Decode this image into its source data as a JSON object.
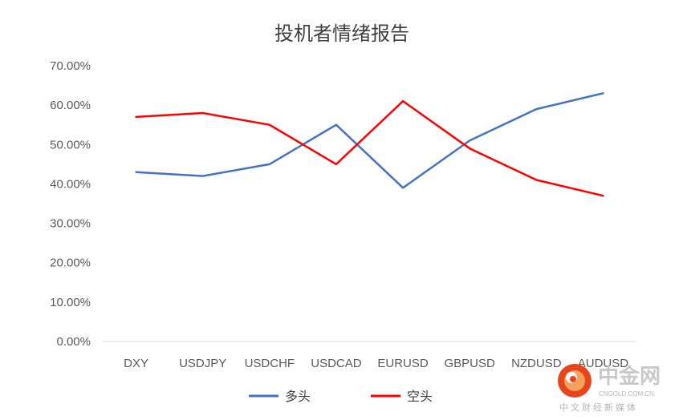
{
  "chart_data": {
    "type": "line",
    "title": "投机者情绪报告",
    "categories": [
      "DXY",
      "USDJPY",
      "USDCHF",
      "USDCAD",
      "EURUSD",
      "GBPUSD",
      "NZDUSD",
      "AUDUSD"
    ],
    "series": [
      {
        "name": "多头",
        "color": "#4472c4",
        "values": [
          0.43,
          0.42,
          0.45,
          0.55,
          0.39,
          0.51,
          0.59,
          0.63
        ]
      },
      {
        "name": "空头",
        "color": "#ff0000",
        "values": [
          0.57,
          0.58,
          0.55,
          0.45,
          0.61,
          0.49,
          0.41,
          0.37
        ]
      }
    ],
    "ylim": [
      0,
      0.7
    ],
    "yticks": [
      "0.00%",
      "10.00%",
      "20.00%",
      "30.00%",
      "40.00%",
      "50.00%",
      "60.00%",
      "70.00%"
    ],
    "xlabel": "",
    "ylabel": "",
    "grid": false,
    "legend_position": "bottom"
  },
  "watermark": {
    "brand": "中金网",
    "domain": "CNGOLD.COM.CN",
    "slogan": "中文财经新媒体",
    "logo_color": "#e8451e"
  }
}
